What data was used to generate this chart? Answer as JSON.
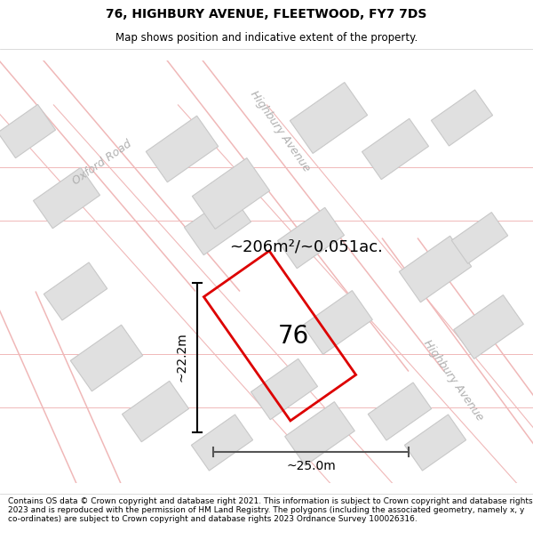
{
  "title_line1": "76, HIGHBURY AVENUE, FLEETWOOD, FY7 7DS",
  "title_line2": "Map shows position and indicative extent of the property.",
  "footer_text": "Contains OS data © Crown copyright and database right 2021. This information is subject to Crown copyright and database rights 2023 and is reproduced with the permission of HM Land Registry. The polygons (including the associated geometry, namely x, y co-ordinates) are subject to Crown copyright and database rights 2023 Ordnance Survey 100026316.",
  "area_text": "~206m²/~0.051ac.",
  "label_76": "76",
  "dim_width": "~25.0m",
  "dim_height": "~22.2m",
  "map_bg": "#f2f0f0",
  "road_label_oxford": "Oxford Road",
  "road_label_highbury_top": "Highbury Avenue",
  "road_label_highbury_right": "Highbury Avenue",
  "plot_color": "#dd0000",
  "building_color": "#e0e0e0",
  "building_edge": "#c8c8c8",
  "road_line_color": "#f0b8b8",
  "road_outline_color": "#d8d8d8",
  "title_fontsize": 10,
  "subtitle_fontsize": 8.5,
  "footer_fontsize": 6.5
}
